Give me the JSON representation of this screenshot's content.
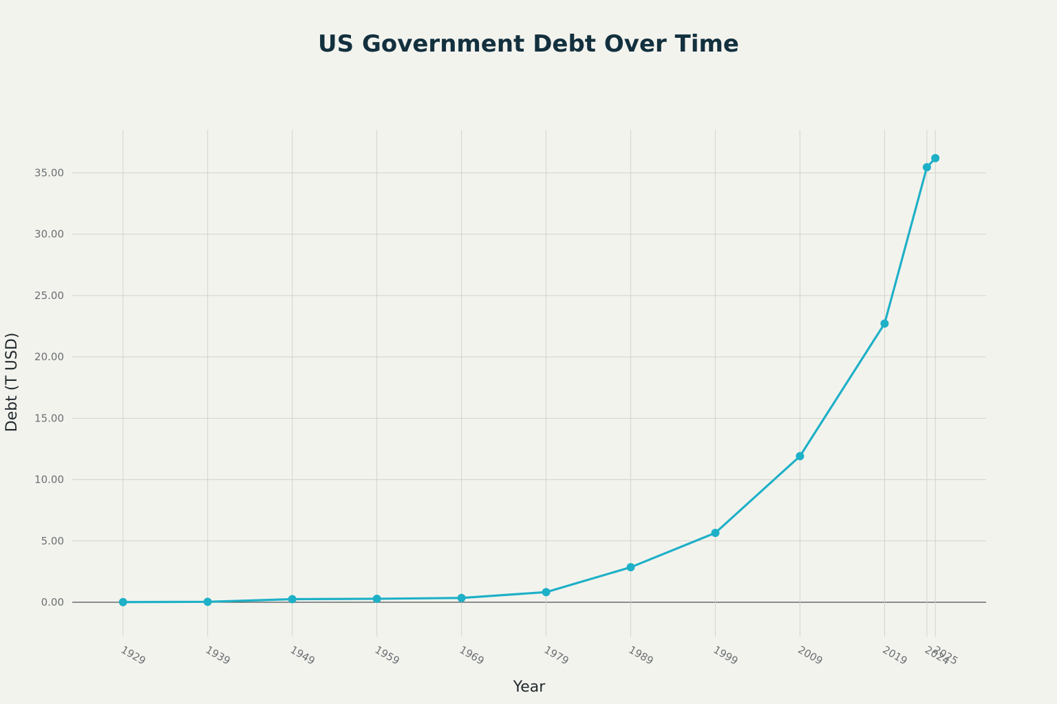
{
  "chart_data": {
    "type": "line",
    "title": "US Government Debt Over Time",
    "xlabel": "Year",
    "ylabel": "Debt (T USD)",
    "x": [
      1929,
      1939,
      1949,
      1959,
      1969,
      1979,
      1989,
      1999,
      2009,
      2019,
      2024,
      2025
    ],
    "series": [
      {
        "values": [
          0.017,
          0.04,
          0.253,
          0.285,
          0.354,
          0.827,
          2.857,
          5.656,
          11.91,
          22.719,
          35.46,
          36.2
        ]
      }
    ],
    "y_ticks": [
      "0.00",
      "5.00",
      "10.00",
      "15.00",
      "20.00",
      "25.00",
      "30.00",
      "35.00"
    ],
    "x_tick_labels": [
      "1929",
      "1939",
      "1949",
      "1959",
      "1969",
      "1979",
      "1989",
      "1999",
      "2009",
      "2019",
      "2024",
      "2025"
    ],
    "xlim": [
      1923,
      2031
    ],
    "ylim": [
      -2.8,
      38.5
    ],
    "grid": true,
    "legend": "none",
    "colors": {
      "line": "#1eb0c7",
      "background": "#f3f3ee"
    }
  }
}
